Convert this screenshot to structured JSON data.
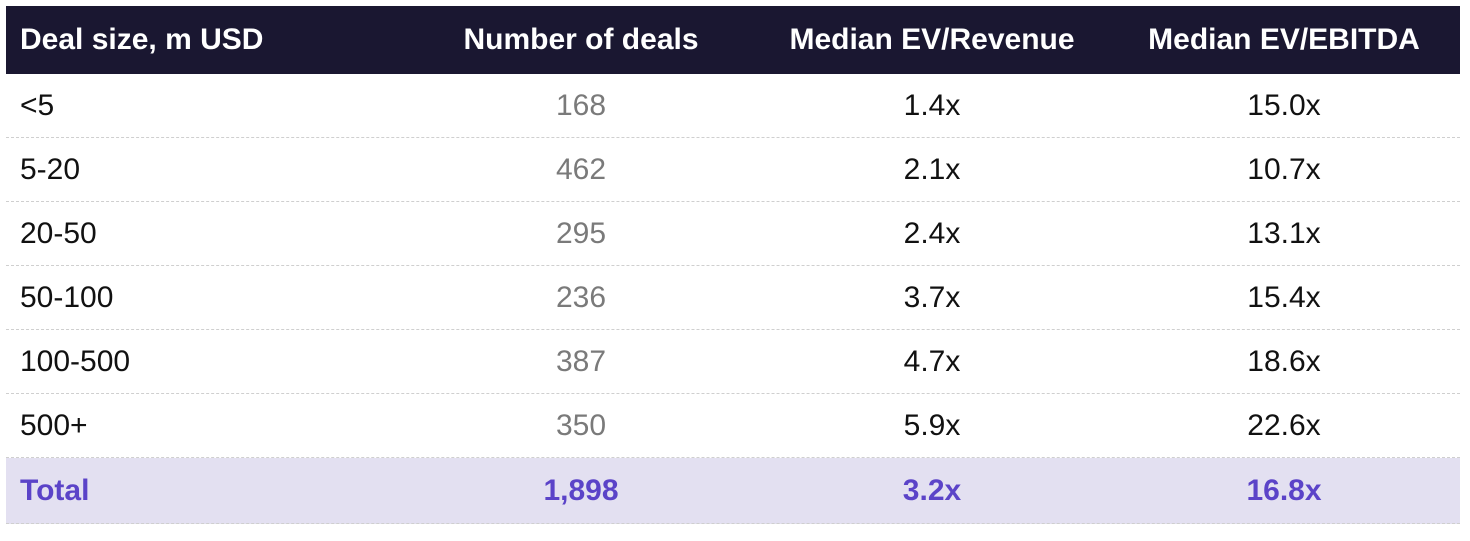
{
  "chart_data": {
    "type": "table",
    "columns": [
      "Deal size, m USD",
      "Number of deals",
      "Median EV/Revenue",
      "Median EV/EBITDA"
    ],
    "rows": [
      [
        "<5",
        "168",
        "1.4x",
        "15.0x"
      ],
      [
        "5-20",
        "462",
        "2.1x",
        "10.7x"
      ],
      [
        "20-50",
        "295",
        "2.4x",
        "13.1x"
      ],
      [
        "50-100",
        "236",
        "3.7x",
        "15.4x"
      ],
      [
        "100-500",
        "387",
        "4.7x",
        "18.6x"
      ],
      [
        "500+",
        "350",
        "5.9x",
        "22.6x"
      ]
    ],
    "total": [
      "Total",
      "1,898",
      "3.2x",
      "16.8x"
    ]
  },
  "colors": {
    "header_bg": "#1a1731",
    "header_text": "#ffffff",
    "total_bg": "#e3e0f1",
    "total_text": "#5b43c8",
    "count_text": "#7a7a7a"
  }
}
